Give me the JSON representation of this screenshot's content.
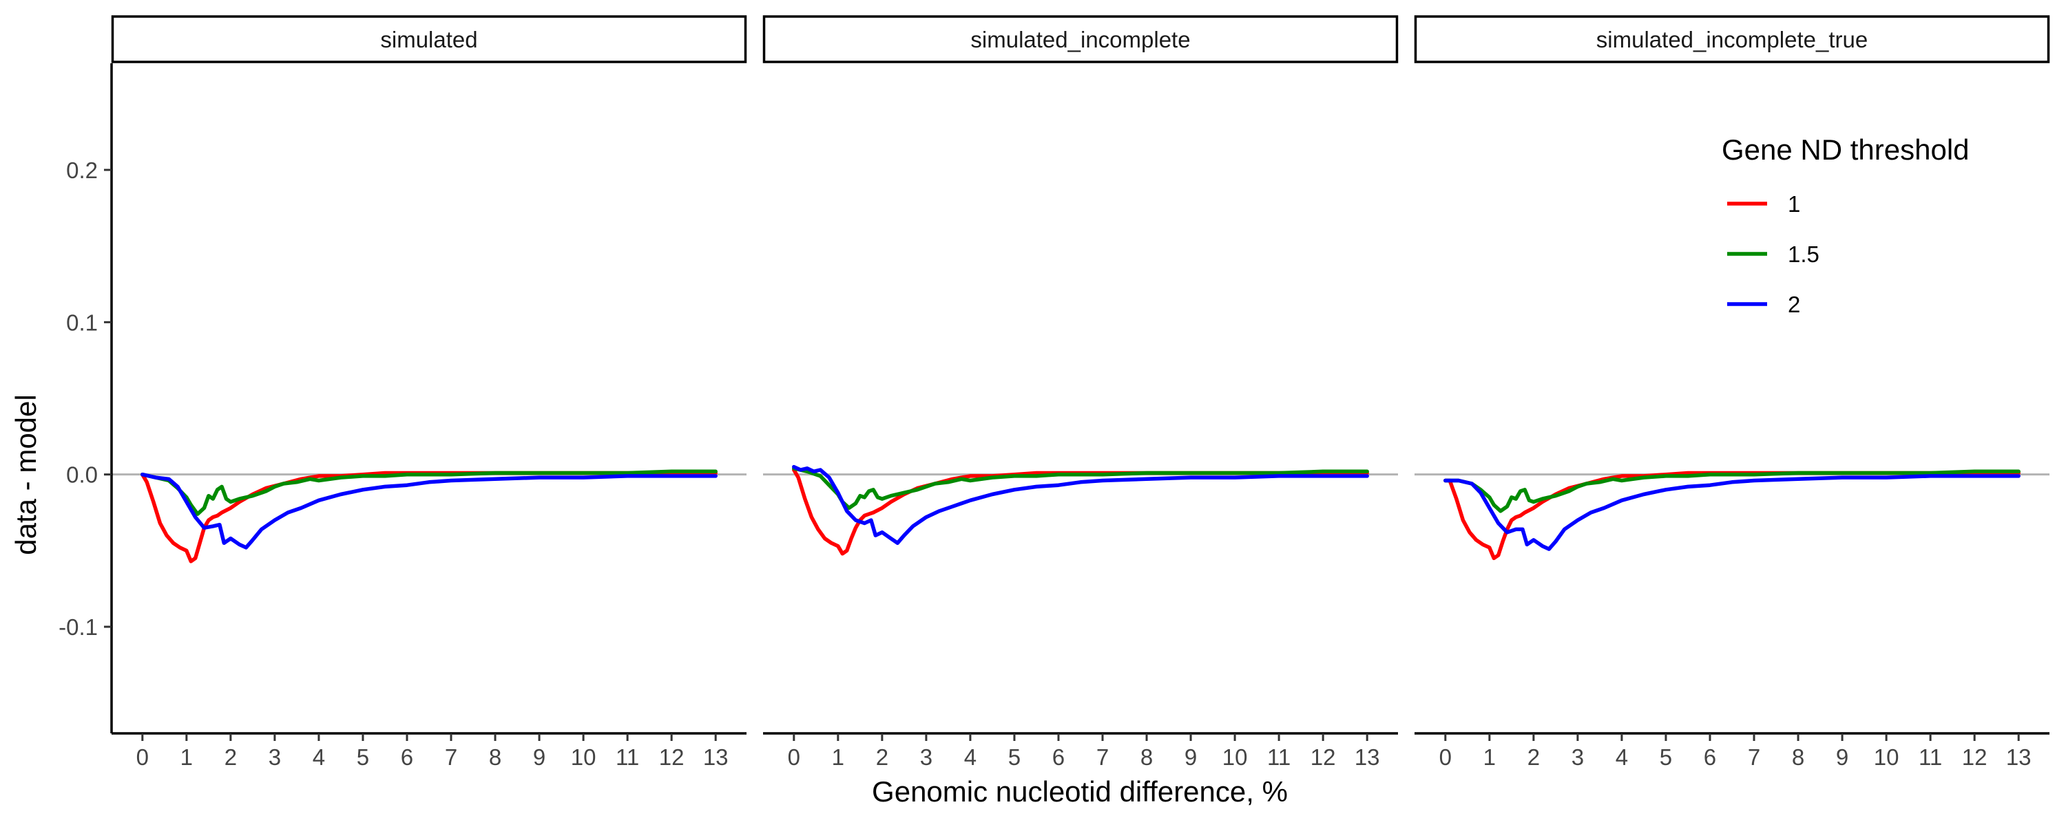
{
  "chart_data": {
    "type": "line",
    "layout": "faceted",
    "xlabel": "Genomic nucleotid difference, %",
    "ylabel": "data - model",
    "xlim": [
      -0.7,
      13.7
    ],
    "ylim": [
      -0.17,
      0.27
    ],
    "x_ticks": [
      0,
      1,
      2,
      3,
      4,
      5,
      6,
      7,
      8,
      9,
      10,
      11,
      12,
      13
    ],
    "x_tick_labels": [
      "0",
      "1",
      "2",
      "3",
      "4",
      "5",
      "6",
      "7",
      "8",
      "9",
      "10",
      "11",
      "12",
      "13"
    ],
    "y_ticks": [
      -0.1,
      0.0,
      0.1,
      0.2
    ],
    "y_tick_labels": [
      "-0.1",
      "0.0",
      "0.1",
      "0.2"
    ],
    "reference_line": {
      "y": 0,
      "color": "#b3b3b3"
    },
    "legend": {
      "title": "Gene ND threshold",
      "position": "inside top-right of last panel",
      "entries": [
        {
          "label": "1",
          "color": "#ff0000"
        },
        {
          "label": "1.5",
          "color": "#008b00"
        },
        {
          "label": "2",
          "color": "#0000ff"
        }
      ]
    },
    "panels": [
      {
        "title": "simulated",
        "series": [
          {
            "name": "1",
            "color": "#ff0000",
            "x": [
              0.0,
              0.1,
              0.25,
              0.4,
              0.55,
              0.7,
              0.85,
              1.0,
              1.1,
              1.2,
              1.3,
              1.4,
              1.5,
              1.6,
              1.7,
              1.8,
              2.0,
              2.2,
              2.5,
              2.8,
              3.2,
              3.6,
              4.0,
              4.5,
              5.0,
              5.5,
              6.0,
              7.0,
              8.0,
              9.0,
              10.0,
              11.0,
              12.0,
              13.0
            ],
            "y": [
              0.0,
              -0.005,
              -0.018,
              -0.032,
              -0.04,
              -0.045,
              -0.048,
              -0.05,
              -0.057,
              -0.055,
              -0.045,
              -0.035,
              -0.03,
              -0.028,
              -0.027,
              -0.025,
              -0.022,
              -0.018,
              -0.013,
              -0.009,
              -0.006,
              -0.003,
              -0.001,
              -0.001,
              0.0,
              0.001,
              0.001,
              0.001,
              0.001,
              0.001,
              0.001,
              0.001,
              0.001,
              0.001
            ]
          },
          {
            "name": "1.5",
            "color": "#008b00",
            "x": [
              0.0,
              0.3,
              0.6,
              0.8,
              1.0,
              1.1,
              1.25,
              1.4,
              1.5,
              1.6,
              1.7,
              1.8,
              1.9,
              2.0,
              2.2,
              2.5,
              2.8,
              3.0,
              3.2,
              3.5,
              3.8,
              4.0,
              4.5,
              5.0,
              5.5,
              6.0,
              7.0,
              8.0,
              9.0,
              10.0,
              11.0,
              12.0,
              13.0
            ],
            "y": [
              0.0,
              -0.002,
              -0.004,
              -0.009,
              -0.015,
              -0.02,
              -0.026,
              -0.022,
              -0.014,
              -0.016,
              -0.01,
              -0.008,
              -0.016,
              -0.018,
              -0.016,
              -0.014,
              -0.011,
              -0.008,
              -0.006,
              -0.005,
              -0.003,
              -0.004,
              -0.002,
              -0.001,
              -0.001,
              0.0,
              0.0,
              0.001,
              0.001,
              0.001,
              0.001,
              0.002,
              0.002
            ]
          },
          {
            "name": "2",
            "color": "#0000ff",
            "x": [
              0.0,
              0.3,
              0.6,
              0.8,
              1.0,
              1.2,
              1.4,
              1.6,
              1.75,
              1.85,
              2.0,
              2.2,
              2.35,
              2.5,
              2.7,
              3.0,
              3.3,
              3.6,
              4.0,
              4.5,
              5.0,
              5.5,
              6.0,
              6.5,
              7.0,
              8.0,
              9.0,
              10.0,
              11.0,
              12.0,
              13.0
            ],
            "y": [
              0.0,
              -0.002,
              -0.003,
              -0.008,
              -0.018,
              -0.028,
              -0.035,
              -0.034,
              -0.033,
              -0.045,
              -0.042,
              -0.046,
              -0.048,
              -0.043,
              -0.036,
              -0.03,
              -0.025,
              -0.022,
              -0.017,
              -0.013,
              -0.01,
              -0.008,
              -0.007,
              -0.005,
              -0.004,
              -0.003,
              -0.002,
              -0.002,
              -0.001,
              -0.001,
              -0.001
            ]
          }
        ]
      },
      {
        "title": "simulated_incomplete",
        "series": [
          {
            "name": "1",
            "color": "#ff0000",
            "x": [
              0.0,
              0.1,
              0.25,
              0.4,
              0.55,
              0.7,
              0.85,
              1.0,
              1.1,
              1.2,
              1.3,
              1.4,
              1.5,
              1.6,
              1.7,
              1.8,
              2.0,
              2.2,
              2.5,
              2.8,
              3.2,
              3.6,
              4.0,
              4.5,
              5.0,
              5.5,
              6.0,
              7.0,
              8.0,
              9.0,
              10.0,
              11.0,
              12.0,
              13.0
            ],
            "y": [
              0.003,
              -0.002,
              -0.016,
              -0.028,
              -0.036,
              -0.042,
              -0.045,
              -0.047,
              -0.052,
              -0.05,
              -0.042,
              -0.035,
              -0.03,
              -0.027,
              -0.026,
              -0.025,
              -0.022,
              -0.018,
              -0.013,
              -0.009,
              -0.006,
              -0.003,
              -0.001,
              -0.001,
              0.0,
              0.001,
              0.001,
              0.001,
              0.001,
              0.001,
              0.001,
              0.001,
              0.001,
              0.001
            ]
          },
          {
            "name": "1.5",
            "color": "#008b00",
            "x": [
              0.0,
              0.3,
              0.6,
              0.8,
              1.0,
              1.1,
              1.25,
              1.4,
              1.5,
              1.6,
              1.7,
              1.8,
              1.9,
              2.0,
              2.2,
              2.5,
              2.8,
              3.0,
              3.2,
              3.5,
              3.8,
              4.0,
              4.5,
              5.0,
              5.5,
              6.0,
              7.0,
              8.0,
              9.0,
              10.0,
              11.0,
              12.0,
              13.0
            ],
            "y": [
              0.004,
              0.002,
              -0.001,
              -0.007,
              -0.013,
              -0.018,
              -0.022,
              -0.019,
              -0.014,
              -0.015,
              -0.011,
              -0.01,
              -0.015,
              -0.016,
              -0.014,
              -0.012,
              -0.01,
              -0.008,
              -0.006,
              -0.005,
              -0.003,
              -0.004,
              -0.002,
              -0.001,
              -0.001,
              0.0,
              0.0,
              0.001,
              0.001,
              0.001,
              0.001,
              0.002,
              0.002
            ]
          },
          {
            "name": "2",
            "color": "#0000ff",
            "x": [
              0.0,
              0.15,
              0.3,
              0.45,
              0.6,
              0.8,
              1.0,
              1.2,
              1.4,
              1.6,
              1.75,
              1.85,
              2.0,
              2.2,
              2.35,
              2.5,
              2.7,
              3.0,
              3.3,
              3.6,
              4.0,
              4.5,
              5.0,
              5.5,
              6.0,
              6.5,
              7.0,
              8.0,
              9.0,
              10.0,
              11.0,
              12.0,
              13.0
            ],
            "y": [
              0.005,
              0.003,
              0.004,
              0.002,
              0.003,
              -0.002,
              -0.012,
              -0.024,
              -0.03,
              -0.032,
              -0.03,
              -0.04,
              -0.038,
              -0.042,
              -0.045,
              -0.04,
              -0.034,
              -0.028,
              -0.024,
              -0.021,
              -0.017,
              -0.013,
              -0.01,
              -0.008,
              -0.007,
              -0.005,
              -0.004,
              -0.003,
              -0.002,
              -0.002,
              -0.001,
              -0.001,
              -0.001
            ]
          }
        ]
      },
      {
        "title": "simulated_incomplete_true",
        "series": [
          {
            "name": "1",
            "color": "#ff0000",
            "x": [
              0.0,
              0.1,
              0.25,
              0.4,
              0.55,
              0.7,
              0.85,
              1.0,
              1.1,
              1.2,
              1.3,
              1.4,
              1.5,
              1.6,
              1.7,
              1.8,
              2.0,
              2.2,
              2.5,
              2.8,
              3.2,
              3.6,
              4.0,
              4.5,
              5.0,
              5.5,
              6.0,
              7.0,
              8.0,
              9.0,
              10.0,
              11.0,
              12.0,
              13.0
            ],
            "y": [
              -0.004,
              -0.004,
              -0.016,
              -0.03,
              -0.038,
              -0.043,
              -0.046,
              -0.048,
              -0.055,
              -0.053,
              -0.044,
              -0.036,
              -0.03,
              -0.028,
              -0.027,
              -0.025,
              -0.022,
              -0.018,
              -0.013,
              -0.009,
              -0.006,
              -0.003,
              -0.001,
              -0.001,
              0.0,
              0.001,
              0.001,
              0.001,
              0.001,
              0.001,
              0.001,
              0.001,
              0.001,
              0.001
            ]
          },
          {
            "name": "1.5",
            "color": "#008b00",
            "x": [
              0.0,
              0.3,
              0.6,
              0.8,
              1.0,
              1.1,
              1.25,
              1.4,
              1.5,
              1.6,
              1.7,
              1.8,
              1.9,
              2.0,
              2.2,
              2.5,
              2.8,
              3.0,
              3.2,
              3.5,
              3.8,
              4.0,
              4.5,
              5.0,
              5.5,
              6.0,
              7.0,
              8.0,
              9.0,
              10.0,
              11.0,
              12.0,
              13.0
            ],
            "y": [
              -0.004,
              -0.004,
              -0.006,
              -0.01,
              -0.015,
              -0.02,
              -0.024,
              -0.021,
              -0.015,
              -0.016,
              -0.011,
              -0.01,
              -0.017,
              -0.018,
              -0.016,
              -0.014,
              -0.011,
              -0.008,
              -0.006,
              -0.005,
              -0.003,
              -0.004,
              -0.002,
              -0.001,
              -0.001,
              0.0,
              0.0,
              0.001,
              0.001,
              0.001,
              0.001,
              0.002,
              0.002
            ]
          },
          {
            "name": "2",
            "color": "#0000ff",
            "x": [
              0.0,
              0.3,
              0.6,
              0.8,
              1.0,
              1.2,
              1.4,
              1.6,
              1.75,
              1.85,
              2.0,
              2.2,
              2.35,
              2.5,
              2.7,
              3.0,
              3.3,
              3.6,
              4.0,
              4.5,
              5.0,
              5.5,
              6.0,
              6.5,
              7.0,
              8.0,
              9.0,
              10.0,
              11.0,
              12.0,
              13.0
            ],
            "y": [
              -0.004,
              -0.004,
              -0.006,
              -0.012,
              -0.022,
              -0.032,
              -0.038,
              -0.036,
              -0.036,
              -0.046,
              -0.043,
              -0.047,
              -0.049,
              -0.044,
              -0.036,
              -0.03,
              -0.025,
              -0.022,
              -0.017,
              -0.013,
              -0.01,
              -0.008,
              -0.007,
              -0.005,
              -0.004,
              -0.003,
              -0.002,
              -0.002,
              -0.001,
              -0.001,
              -0.001
            ]
          }
        ]
      }
    ]
  }
}
